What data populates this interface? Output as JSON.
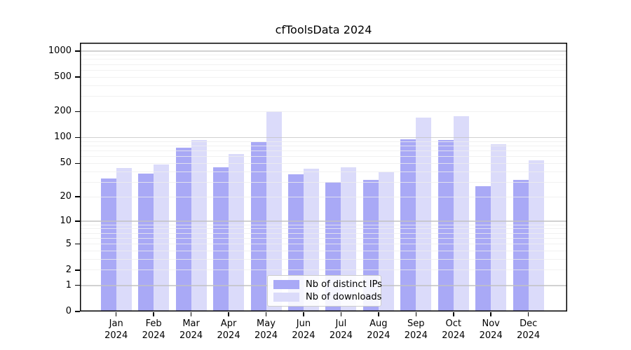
{
  "chart_data": {
    "type": "bar",
    "title": "cfToolsData 2024",
    "categories": [
      "Jan 2024",
      "Feb 2024",
      "Mar 2024",
      "Apr 2024",
      "May 2024",
      "Jun 2024",
      "Jul 2024",
      "Aug 2024",
      "Sep 2024",
      "Oct 2024",
      "Nov 2024",
      "Dec 2024"
    ],
    "series": [
      {
        "name": "Nb of distinct IPs",
        "color": "#a9a9f6",
        "values": [
          33,
          38,
          76,
          45,
          89,
          37,
          30,
          32,
          95,
          94,
          27,
          32
        ]
      },
      {
        "name": "Nb of downloads",
        "color": "#dbdbfa",
        "values": [
          44,
          48,
          93,
          64,
          200,
          43,
          45,
          39,
          170,
          176,
          84,
          54
        ]
      }
    ],
    "xlabel": "",
    "ylabel": "",
    "y_scale": "symlog",
    "y_ticks": [
      0,
      1,
      2,
      5,
      10,
      20,
      50,
      100,
      200,
      500,
      1000
    ],
    "ylim": [
      0,
      1250
    ],
    "grid": true,
    "grid_minor_color": "#ededed",
    "grid_major_color": "#c2c2c2",
    "legend_position": "inside-bottom-center",
    "background": "#ffffff",
    "axis_color": "#000000"
  }
}
